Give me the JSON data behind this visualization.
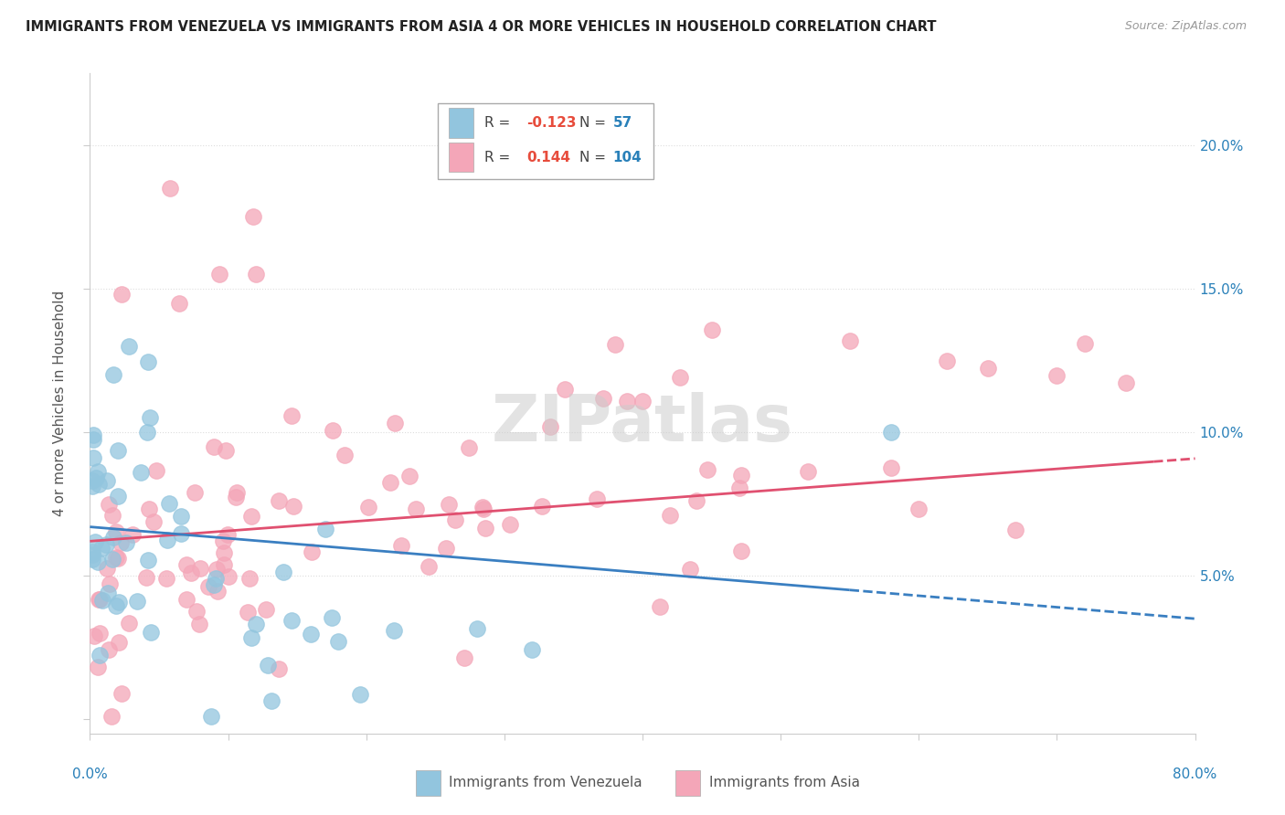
{
  "title": "IMMIGRANTS FROM VENEZUELA VS IMMIGRANTS FROM ASIA 4 OR MORE VEHICLES IN HOUSEHOLD CORRELATION CHART",
  "source": "Source: ZipAtlas.com",
  "ylabel": "4 or more Vehicles in Household",
  "ytick_vals": [
    0.0,
    0.05,
    0.1,
    0.15,
    0.2
  ],
  "ytick_labels": [
    "",
    "5.0%",
    "10.0%",
    "15.0%",
    "20.0%"
  ],
  "xlim": [
    0.0,
    0.8
  ],
  "ylim": [
    -0.005,
    0.225
  ],
  "venezuela_color": "#92C5DE",
  "venezuela_line_color": "#3A7FC1",
  "asia_color": "#F4A6B8",
  "asia_line_color": "#E05070",
  "venezuela_label": "Immigrants from Venezuela",
  "asia_label": "Immigrants from Asia",
  "watermark": "ZIPatlas",
  "r_ven": "-0.123",
  "n_ven": "57",
  "r_asia": "0.144",
  "n_asia": "104",
  "r_color": "#E74C3C",
  "n_color": "#2980B9",
  "grid_color": "#DDDDDD",
  "axis_color": "#CCCCCC"
}
